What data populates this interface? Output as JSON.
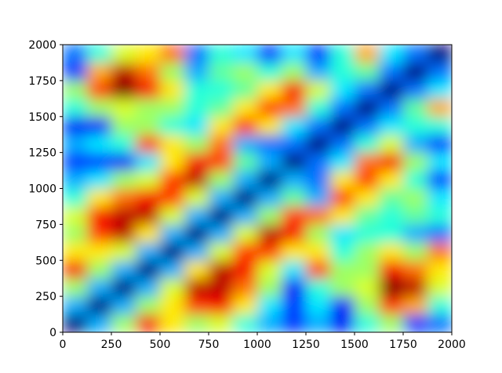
{
  "chart_data": {
    "type": "heatmap",
    "colormap": "jet",
    "xlim": [
      0,
      2000
    ],
    "ylim": [
      0,
      2000
    ],
    "xticks": [
      0,
      250,
      500,
      750,
      1000,
      1250,
      1500,
      1750,
      2000
    ],
    "yticks": [
      0,
      250,
      500,
      750,
      1000,
      1250,
      1500,
      1750,
      2000
    ],
    "z": [
      [
        0.05,
        0.3,
        0.5,
        0.8,
        0.6,
        0.5,
        0.55,
        0.4,
        0.3,
        0.2,
        0.3,
        0.15,
        0.4,
        0.5,
        0.2,
        0.25
      ],
      [
        0.3,
        0.05,
        0.3,
        0.5,
        0.6,
        0.75,
        0.8,
        0.6,
        0.35,
        0.2,
        0.35,
        0.15,
        0.5,
        0.75,
        0.65,
        0.4
      ],
      [
        0.5,
        0.3,
        0.05,
        0.3,
        0.55,
        0.85,
        0.85,
        0.7,
        0.5,
        0.15,
        0.4,
        0.5,
        0.55,
        0.9,
        0.85,
        0.55
      ],
      [
        0.8,
        0.5,
        0.3,
        0.05,
        0.3,
        0.6,
        0.85,
        0.8,
        0.55,
        0.35,
        0.75,
        0.5,
        0.5,
        0.8,
        0.7,
        0.6
      ],
      [
        0.6,
        0.6,
        0.55,
        0.3,
        0.05,
        0.3,
        0.55,
        0.75,
        0.75,
        0.6,
        0.6,
        0.4,
        0.5,
        0.6,
        0.5,
        0.7
      ],
      [
        0.5,
        0.75,
        0.85,
        0.6,
        0.3,
        0.05,
        0.3,
        0.55,
        0.85,
        0.8,
        0.5,
        0.35,
        0.4,
        0.4,
        0.3,
        0.25
      ],
      [
        0.55,
        0.8,
        0.85,
        0.85,
        0.55,
        0.3,
        0.05,
        0.3,
        0.5,
        0.75,
        0.7,
        0.6,
        0.45,
        0.4,
        0.45,
        0.4
      ],
      [
        0.4,
        0.6,
        0.7,
        0.8,
        0.75,
        0.55,
        0.3,
        0.05,
        0.3,
        0.45,
        0.3,
        0.75,
        0.6,
        0.45,
        0.5,
        0.35
      ],
      [
        0.3,
        0.35,
        0.5,
        0.55,
        0.75,
        0.85,
        0.5,
        0.3,
        0.05,
        0.3,
        0.25,
        0.6,
        0.75,
        0.6,
        0.4,
        0.2
      ],
      [
        0.2,
        0.2,
        0.15,
        0.35,
        0.6,
        0.8,
        0.75,
        0.45,
        0.3,
        0.05,
        0.25,
        0.35,
        0.7,
        0.8,
        0.5,
        0.35
      ],
      [
        0.3,
        0.35,
        0.4,
        0.75,
        0.6,
        0.5,
        0.7,
        0.3,
        0.25,
        0.25,
        0.05,
        0.25,
        0.4,
        0.55,
        0.3,
        0.2
      ],
      [
        0.15,
        0.15,
        0.5,
        0.5,
        0.4,
        0.35,
        0.6,
        0.75,
        0.6,
        0.35,
        0.25,
        0.05,
        0.25,
        0.35,
        0.4,
        0.4
      ],
      [
        0.4,
        0.5,
        0.55,
        0.5,
        0.5,
        0.4,
        0.45,
        0.6,
        0.75,
        0.7,
        0.4,
        0.25,
        0.05,
        0.25,
        0.45,
        0.65
      ],
      [
        0.5,
        0.75,
        0.9,
        0.8,
        0.6,
        0.4,
        0.4,
        0.45,
        0.6,
        0.8,
        0.55,
        0.35,
        0.25,
        0.05,
        0.25,
        0.35
      ],
      [
        0.2,
        0.65,
        0.85,
        0.7,
        0.5,
        0.3,
        0.45,
        0.5,
        0.4,
        0.5,
        0.3,
        0.4,
        0.45,
        0.25,
        0.05,
        0.25
      ],
      [
        0.25,
        0.4,
        0.55,
        0.6,
        0.7,
        0.25,
        0.4,
        0.35,
        0.2,
        0.35,
        0.2,
        0.4,
        0.65,
        0.35,
        0.25,
        0.05
      ]
    ]
  }
}
